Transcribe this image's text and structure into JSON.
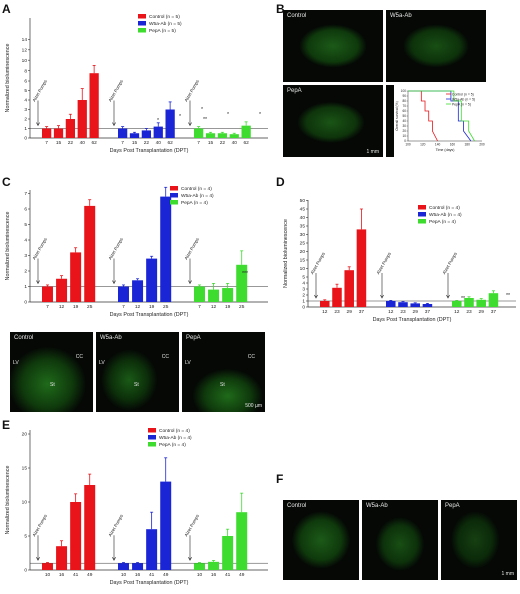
{
  "panels": {
    "A": "A",
    "B": "B",
    "C": "C",
    "D": "D",
    "E": "E",
    "F": "F"
  },
  "colors": {
    "control": "#e8141a",
    "w5a": "#1a25d6",
    "pepa": "#3ddc2e"
  },
  "common": {
    "ylabel": "Normalized bioluminescence",
    "xlabel": "Days Post Transplantation (DPT)",
    "pump_label": "Alzet Pumps"
  },
  "chart_data": [
    {
      "id": "A",
      "type": "bar",
      "xlabel": "Days Post Transplantation (DPT)",
      "ylabel": "Normalized bioluminescence",
      "yticks": [
        "0",
        "1",
        "2",
        "3",
        "4",
        "5",
        "6",
        "8",
        "10",
        "12",
        "14"
      ],
      "series": [
        {
          "name": "Control (n = 5)",
          "categories": [
            "7",
            "15",
            "22",
            "40",
            "62"
          ],
          "values": [
            1,
            1,
            2,
            4,
            7.5
          ],
          "errors": [
            0.2,
            0.3,
            0.5,
            1.2,
            1.5
          ]
        },
        {
          "name": "W5a-Ab (n = 5)",
          "categories": [
            "7",
            "15",
            "22",
            "40",
            "62"
          ],
          "values": [
            1,
            0.5,
            0.8,
            1.2,
            3
          ],
          "errors": [
            0.2,
            0.1,
            0.2,
            0.4,
            0.8
          ]
        },
        {
          "name": "PepA (n = 5)",
          "categories": [
            "7",
            "15",
            "22",
            "40",
            "62"
          ],
          "values": [
            1,
            0.5,
            0.5,
            0.4,
            1.3
          ],
          "errors": [
            0.2,
            0.1,
            0.1,
            0.1,
            0.4
          ]
        }
      ],
      "annotations": [
        "**",
        "*",
        "*",
        "*",
        "*",
        "*"
      ]
    },
    {
      "id": "B",
      "type": "line",
      "xlabel": "Time (days)",
      "ylabel": "Overall survival (%)",
      "xticks": [
        "100",
        "120",
        "140",
        "160",
        "180",
        "200"
      ],
      "yticks": [
        "0",
        "10",
        "20",
        "30",
        "40",
        "50",
        "60",
        "70",
        "80",
        "90",
        "100"
      ],
      "series": [
        {
          "name": "Control (n = 5)",
          "x": [
            100,
            118,
            118,
            123,
            123,
            128,
            128,
            133,
            133,
            140
          ],
          "y": [
            100,
            100,
            80,
            80,
            60,
            60,
            40,
            40,
            20,
            0
          ]
        },
        {
          "name": "W5a-Ab (n = 5)",
          "x": [
            100,
            158,
            158,
            168,
            168,
            175,
            175,
            185
          ],
          "y": [
            100,
            100,
            80,
            80,
            40,
            40,
            20,
            0
          ]
        },
        {
          "name": "PepA (n = 5)",
          "x": [
            100,
            162,
            162,
            172,
            172,
            182,
            182,
            190
          ],
          "y": [
            100,
            100,
            80,
            80,
            40,
            40,
            20,
            0
          ]
        }
      ]
    },
    {
      "id": "C",
      "type": "bar",
      "xlabel": "Days Post Transplantation (DPT)",
      "ylabel": "Normalized bioluminescence",
      "yticks": [
        "0",
        "1",
        "2",
        "3",
        "4",
        "5",
        "6",
        "7"
      ],
      "series": [
        {
          "name": "Control (n = 4)",
          "categories": [
            "7",
            "12",
            "19",
            "25"
          ],
          "values": [
            1,
            1.5,
            3.2,
            6.2
          ],
          "errors": [
            0.1,
            0.2,
            0.3,
            0.4
          ]
        },
        {
          "name": "W5a-Ab (n = 4)",
          "categories": [
            "7",
            "12",
            "19",
            "25"
          ],
          "values": [
            1,
            1.4,
            2.8,
            6.8
          ],
          "errors": [
            0.1,
            0.1,
            0.15,
            0.6
          ]
        },
        {
          "name": "PepA (n = 4)",
          "categories": [
            "7",
            "12",
            "19",
            "25"
          ],
          "values": [
            1,
            0.8,
            0.9,
            2.4
          ],
          "errors": [
            0.1,
            0.4,
            0.3,
            0.9
          ]
        }
      ],
      "annotations": [
        "***"
      ]
    },
    {
      "id": "D",
      "type": "bar",
      "xlabel": "Days Post Transplantation (DPT)",
      "ylabel": "Normalized bioluminescence",
      "yticks": [
        "0",
        "1",
        "2",
        "3",
        "4",
        "5",
        "10",
        "15",
        "20",
        "25",
        "30",
        "35",
        "40",
        "45",
        "50"
      ],
      "series": [
        {
          "name": "Control (n = 4)",
          "categories": [
            "12",
            "23",
            "29",
            "37"
          ],
          "values": [
            1,
            3.2,
            9,
            33
          ],
          "errors": [
            0.2,
            0.6,
            2,
            12
          ]
        },
        {
          "name": "W5a-Ab (n = 4)",
          "categories": [
            "12",
            "23",
            "29",
            "37"
          ],
          "values": [
            1,
            0.8,
            0.6,
            0.5
          ],
          "errors": [
            0.1,
            0.1,
            0.1,
            0.1
          ]
        },
        {
          "name": "PepA (n = 4)",
          "categories": [
            "12",
            "23",
            "29",
            "37"
          ],
          "values": [
            1,
            1.5,
            1.2,
            2.3
          ],
          "errors": [
            0.1,
            0.2,
            0.2,
            0.4
          ]
        }
      ],
      "annotations": [
        "**",
        "**"
      ]
    },
    {
      "id": "E",
      "type": "bar",
      "xlabel": "Days Post Transplantation (DPT)",
      "ylabel": "Normalized bioluminescence",
      "yticks": [
        "0",
        "5",
        "10",
        "15",
        "20"
      ],
      "series": [
        {
          "name": "Control (n = 4)",
          "categories": [
            "10",
            "16",
            "41",
            "49"
          ],
          "values": [
            1,
            3.5,
            10,
            12.5
          ],
          "errors": [
            0.1,
            0.8,
            1.2,
            1.6
          ]
        },
        {
          "name": "W5a-Ab (n = 4)",
          "categories": [
            "10",
            "16",
            "41",
            "49"
          ],
          "values": [
            1,
            1,
            6,
            13
          ],
          "errors": [
            0.1,
            0.1,
            2.5,
            3.5
          ]
        },
        {
          "name": "PepA (n = 4)",
          "categories": [
            "10",
            "16",
            "41",
            "49"
          ],
          "values": [
            1,
            1.2,
            5,
            8.5
          ],
          "errors": [
            0.1,
            0.2,
            1,
            2.8
          ]
        }
      ]
    }
  ],
  "micrographs": {
    "B": {
      "control": "Control",
      "w5a": "W5a-Ab",
      "pepa": "PepA",
      "scale": "1 mm"
    },
    "C": {
      "control": "Control",
      "w5a": "W5a-Ab",
      "pepa": "PepA",
      "lv": "LV",
      "cc": "CC",
      "st": "St",
      "scale": "500 µm"
    },
    "F": {
      "control": "Control",
      "w5a": "W5a-Ab",
      "pepa": "PepA",
      "scale": "1 mm"
    }
  }
}
